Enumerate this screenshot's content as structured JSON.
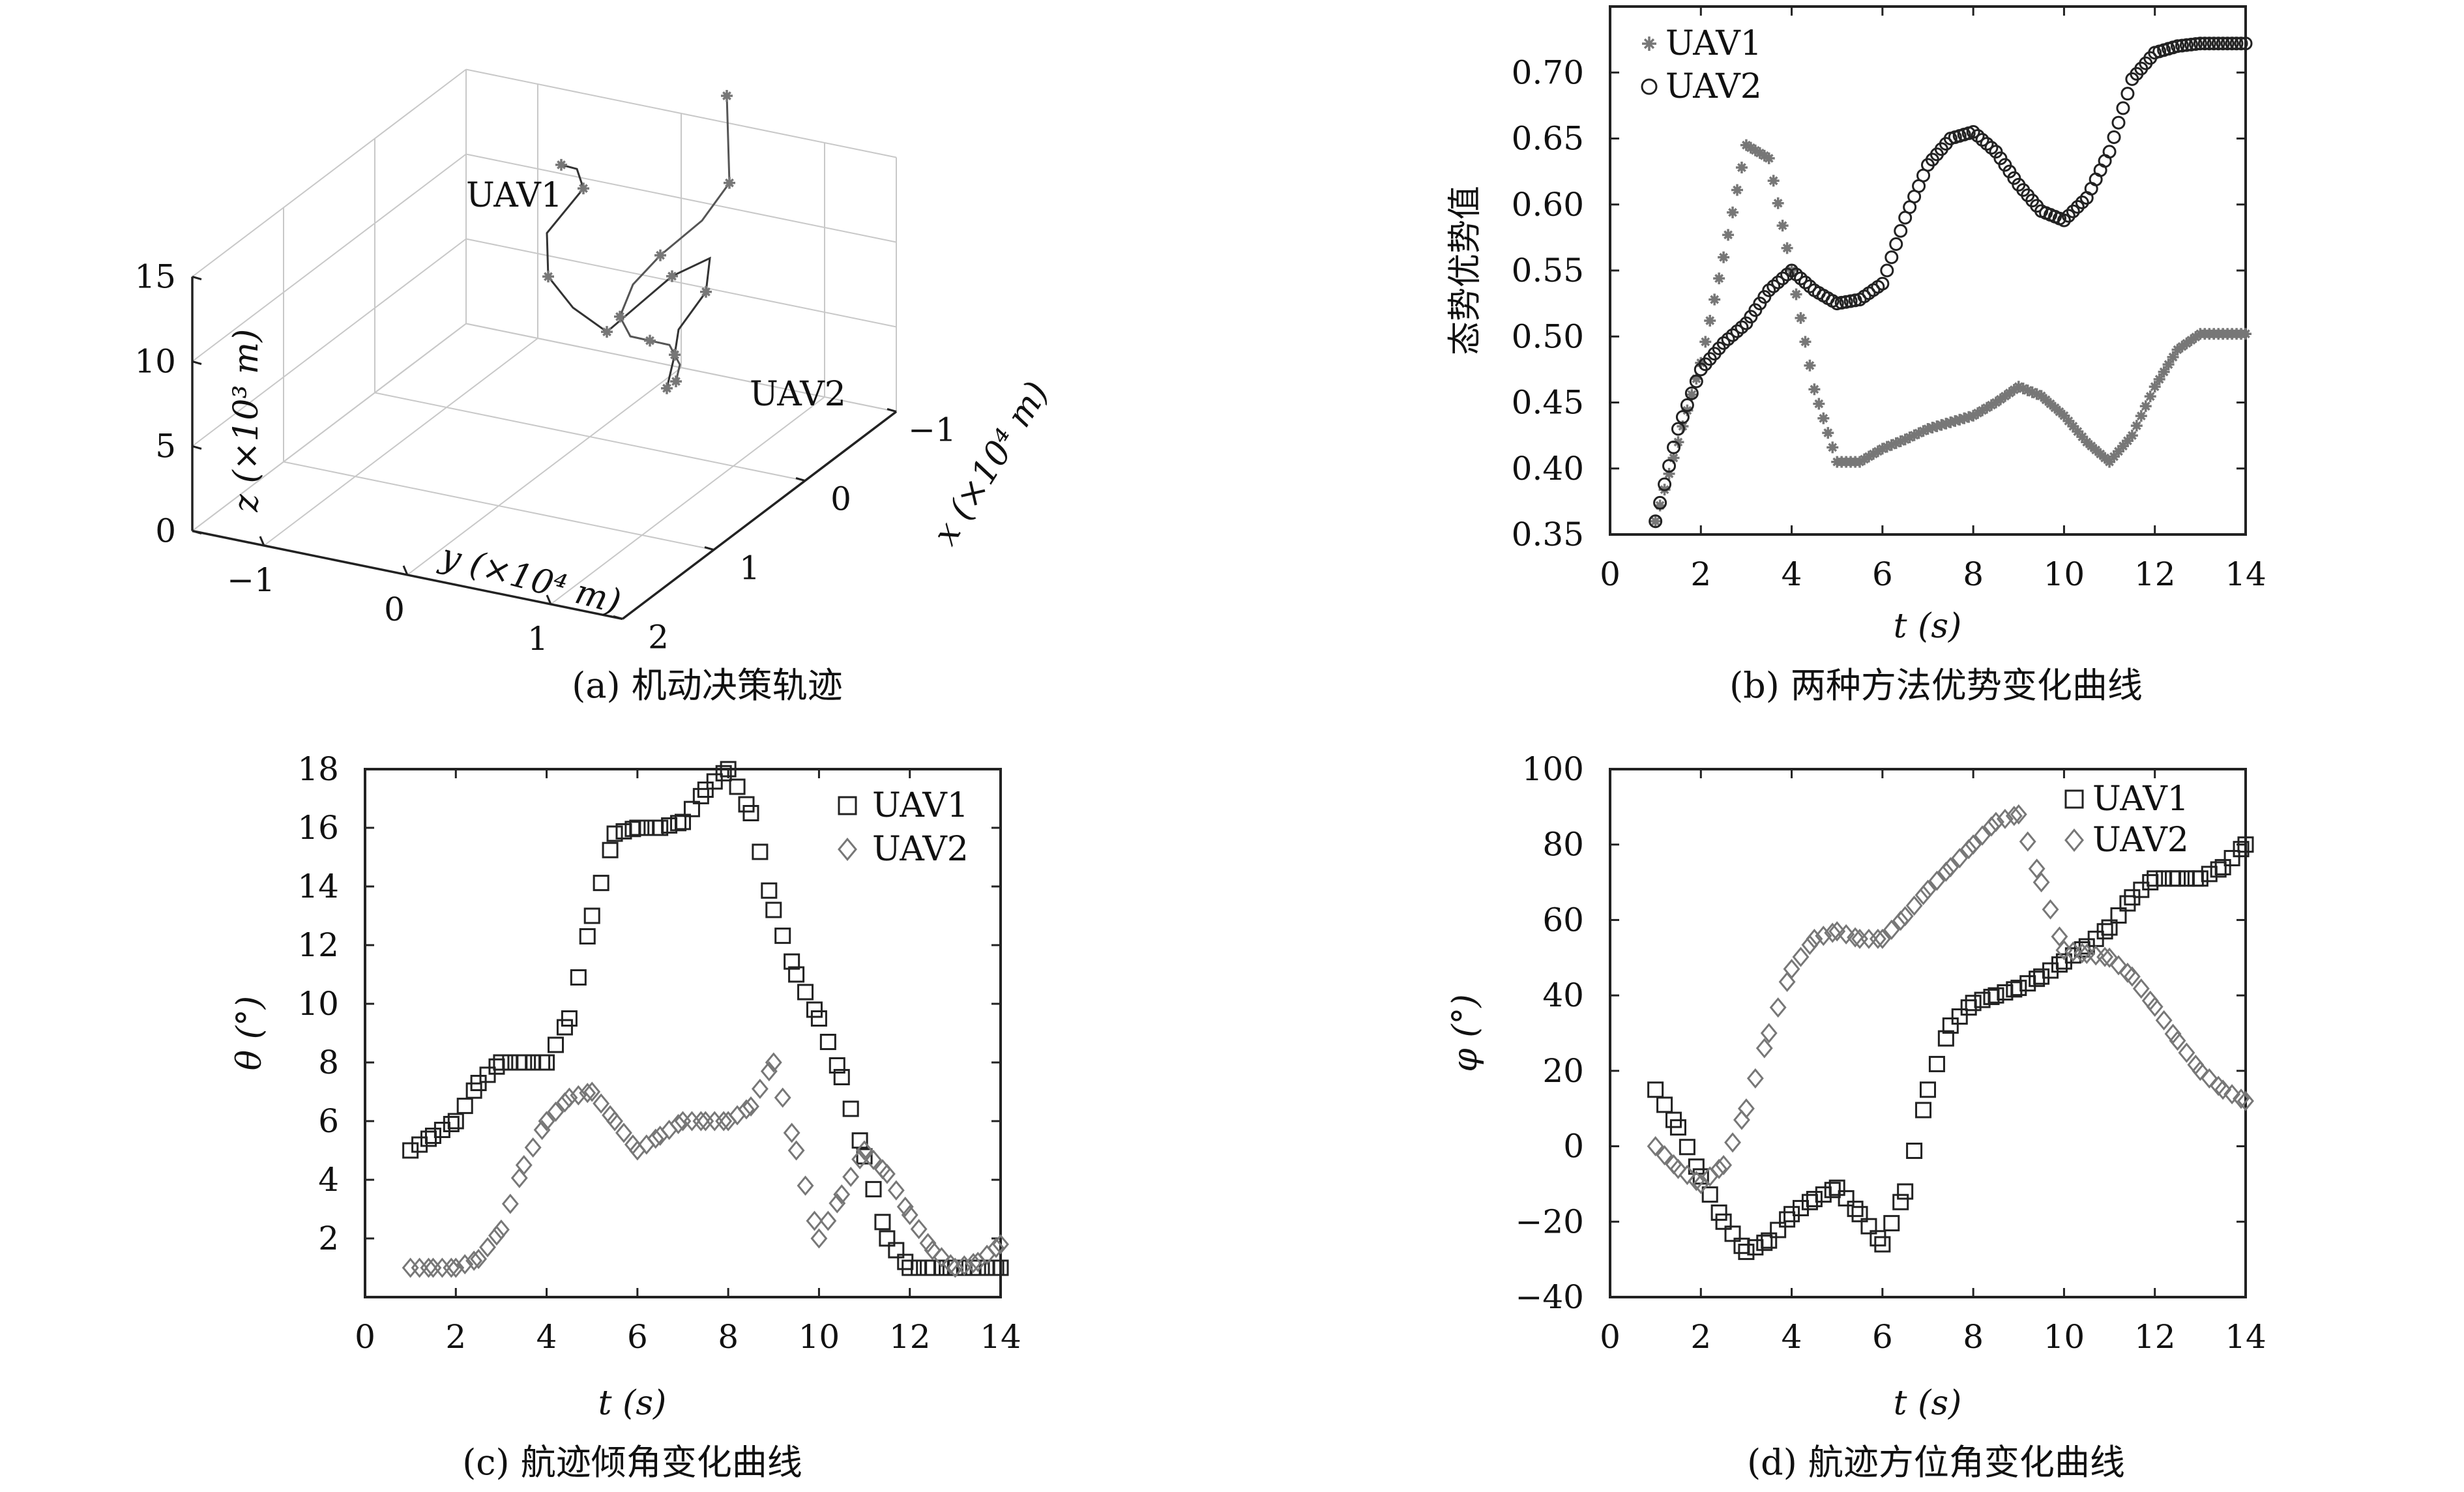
{
  "panels": {
    "a": {
      "caption": "(a) 机动决策轨迹"
    },
    "b": {
      "caption": "(b) 两种方法优势变化曲线"
    },
    "c": {
      "caption": "(c) 航迹倾角变化曲线"
    },
    "d": {
      "caption": "(d) 航迹方位角变化曲线"
    }
  },
  "chart_data": [
    {
      "id": "a",
      "type": "line3d",
      "caption": "(a) 机动决策轨迹",
      "xlabel": "x (×10⁴ m)",
      "ylabel": "y (×10⁴ m)",
      "zlabel": "z (×10³ m)",
      "x_ticks": [
        "−1",
        "0",
        "1",
        "2"
      ],
      "y_ticks": [
        "−1",
        "0",
        "1"
      ],
      "z_ticks": [
        "0",
        "5",
        "10",
        "15"
      ],
      "xlim": [
        -1,
        2
      ],
      "ylim": [
        -1.5,
        1.5
      ],
      "zlim": [
        0,
        15
      ],
      "grid": true,
      "annotations": [
        "UAV1",
        "UAV2"
      ],
      "series": [
        {
          "name": "UAV1",
          "points": [
            [
              -1.1,
              -0.9,
              10
            ],
            [
              -0.8,
              -0.6,
              11.5
            ],
            [
              -0.4,
              -0.3,
              12.5
            ],
            [
              0.0,
              -0.3,
              11.5
            ],
            [
              0.3,
              -0.1,
              10.5
            ],
            [
              0.5,
              0.2,
              10
            ],
            [
              0.6,
              0.5,
              9.5
            ],
            [
              0.4,
              0.6,
              10.5
            ],
            [
              0.2,
              0.7,
              11.5
            ],
            [
              0.1,
              0.9,
              12.5
            ],
            [
              0.3,
              1.0,
              11.5
            ],
            [
              0.6,
              1.0,
              10.5
            ],
            [
              0.8,
              1.1,
              10
            ],
            [
              1.0,
              1.2,
              10
            ],
            [
              1.2,
              1.3,
              10
            ]
          ]
        },
        {
          "name": "UAV2",
          "points": [
            [
              -1.5,
              0.0,
              14
            ],
            [
              -1.2,
              0.2,
              13
            ],
            [
              -0.9,
              0.4,
              12
            ],
            [
              -0.6,
              0.4,
              11
            ],
            [
              -0.3,
              0.3,
              10
            ],
            [
              0.0,
              0.3,
              9.5
            ],
            [
              0.3,
              0.4,
              9
            ],
            [
              0.5,
              0.6,
              9
            ],
            [
              0.6,
              0.8,
              9.5
            ],
            [
              0.7,
              1.0,
              10
            ],
            [
              0.8,
              1.1,
              10
            ],
            [
              0.9,
              1.2,
              10
            ],
            [
              1.1,
              1.3,
              10
            ]
          ]
        }
      ]
    },
    {
      "id": "b",
      "type": "scatter",
      "caption": "(b) 两种方法优势变化曲线",
      "xlabel": "t (s)",
      "ylabel": "态势优势值",
      "xlim": [
        0,
        14
      ],
      "ylim": [
        0.35,
        0.75
      ],
      "x_ticks": [
        0,
        2,
        4,
        6,
        8,
        10,
        12,
        14
      ],
      "y_ticks": [
        0.35,
        0.4,
        0.45,
        0.5,
        0.55,
        0.6,
        0.65,
        0.7
      ],
      "y_tick_labels": [
        "0.35",
        "0.40",
        "0.45",
        "0.50",
        "0.55",
        "0.60",
        "0.65",
        "0.70"
      ],
      "legend": "top-left",
      "series": [
        {
          "name": "UAV1",
          "marker": "star",
          "x": [
            1,
            1.5,
            2,
            2.5,
            3,
            3.5,
            4,
            4.5,
            5,
            5.5,
            6,
            6.5,
            7,
            7.5,
            8,
            8.5,
            9,
            9.5,
            10,
            10.5,
            11,
            11.5,
            12,
            12.5,
            13,
            13.5,
            14
          ],
          "y": [
            0.36,
            0.42,
            0.48,
            0.56,
            0.645,
            0.635,
            0.55,
            0.46,
            0.405,
            0.405,
            0.415,
            0.422,
            0.43,
            0.435,
            0.44,
            0.45,
            0.462,
            0.455,
            0.44,
            0.42,
            0.405,
            0.425,
            0.462,
            0.49,
            0.502,
            0.502,
            0.502
          ]
        },
        {
          "name": "UAV2",
          "marker": "circle",
          "x": [
            1,
            1.5,
            2,
            2.5,
            3,
            3.5,
            4,
            4.5,
            5,
            5.5,
            6,
            6.5,
            7,
            7.5,
            8,
            8.5,
            9,
            9.5,
            10,
            10.5,
            11,
            11.5,
            12,
            12.5,
            13,
            13.5,
            14
          ],
          "y": [
            0.36,
            0.43,
            0.475,
            0.495,
            0.51,
            0.535,
            0.55,
            0.535,
            0.525,
            0.528,
            0.54,
            0.59,
            0.63,
            0.65,
            0.655,
            0.64,
            0.615,
            0.595,
            0.588,
            0.605,
            0.64,
            0.695,
            0.715,
            0.72,
            0.722,
            0.722,
            0.722
          ]
        }
      ]
    },
    {
      "id": "c",
      "type": "scatter",
      "caption": "(c) 航迹倾角变化曲线",
      "xlabel": "t (s)",
      "ylabel": "θ (°)",
      "xlim": [
        0,
        14
      ],
      "ylim": [
        0,
        18
      ],
      "x_ticks": [
        0,
        2,
        4,
        6,
        8,
        10,
        12,
        14
      ],
      "y_ticks": [
        2,
        4,
        6,
        8,
        10,
        12,
        14,
        16,
        18
      ],
      "y_tick_labels": [
        "2",
        "4",
        "6",
        "8",
        "10",
        "12",
        "14",
        "16",
        "18"
      ],
      "legend": "top-right",
      "series": [
        {
          "name": "UAV1",
          "marker": "square",
          "x": [
            1,
            1.5,
            2,
            2.5,
            3,
            3.5,
            4,
            4.5,
            5,
            5.5,
            6,
            6.5,
            7,
            7.5,
            8,
            8.5,
            9,
            9.5,
            10,
            10.5,
            11,
            11.5,
            12,
            12.5,
            13,
            13.5,
            14
          ],
          "y": [
            5,
            5.5,
            6,
            7.3,
            8,
            8,
            8,
            9.5,
            13,
            15.8,
            16,
            16,
            16.2,
            17.3,
            18,
            16.5,
            13.2,
            11,
            9.5,
            7.5,
            4.8,
            2,
            1,
            1,
            1,
            1,
            1
          ]
        },
        {
          "name": "UAV2",
          "marker": "diamond",
          "x": [
            1,
            1.5,
            2,
            2.5,
            3,
            3.5,
            4,
            4.5,
            5,
            5.5,
            6,
            6.5,
            7,
            7.5,
            8,
            8.5,
            9,
            9.5,
            10,
            10.5,
            11,
            11.5,
            12,
            12.5,
            13,
            13.5,
            14
          ],
          "y": [
            1,
            1,
            1,
            1.3,
            2.3,
            4.5,
            6,
            6.8,
            7,
            6,
            5,
            5.5,
            6,
            6,
            6,
            6.5,
            8,
            5,
            2,
            3.5,
            5,
            4.2,
            2.8,
            1.6,
            1,
            1.2,
            1.8
          ]
        }
      ]
    },
    {
      "id": "d",
      "type": "scatter",
      "caption": "(d) 航迹方位角变化曲线",
      "xlabel": "t (s)",
      "ylabel": "φ (°)",
      "xlim": [
        0,
        14
      ],
      "ylim": [
        -40,
        100
      ],
      "x_ticks": [
        0,
        2,
        4,
        6,
        8,
        10,
        12,
        14
      ],
      "y_ticks": [
        -40,
        -20,
        0,
        20,
        40,
        60,
        80,
        100
      ],
      "y_tick_labels": [
        "−40",
        "−20",
        "0",
        "20",
        "40",
        "60",
        "80",
        "100"
      ],
      "legend": "top-right",
      "series": [
        {
          "name": "UAV1",
          "marker": "square",
          "x": [
            1,
            1.5,
            2,
            2.5,
            3,
            3.5,
            4,
            4.5,
            5,
            5.5,
            6,
            6.5,
            7,
            7.5,
            8,
            8.5,
            9,
            9.5,
            10,
            10.5,
            11,
            11.5,
            12,
            12.5,
            13,
            13.5,
            14
          ],
          "y": [
            15,
            5,
            -8,
            -20,
            -28,
            -25,
            -18,
            -14,
            -11,
            -18,
            -26,
            -12,
            15,
            32,
            38,
            40,
            42,
            45,
            49,
            53,
            58,
            66,
            71,
            71,
            71,
            74,
            80
          ]
        },
        {
          "name": "UAV2",
          "marker": "diamond",
          "x": [
            1,
            1.5,
            2,
            2.5,
            3,
            3.5,
            4,
            4.5,
            5,
            5.5,
            6,
            6.5,
            7,
            7.5,
            8,
            8.5,
            9,
            9.5,
            10,
            10.5,
            11,
            11.5,
            12,
            12.5,
            13,
            13.5,
            14
          ],
          "y": [
            0,
            -6,
            -10,
            -5,
            10,
            30,
            47,
            55,
            57,
            55,
            55,
            61,
            68,
            74,
            80,
            86,
            88,
            70,
            52,
            51,
            50,
            45,
            37,
            28,
            20,
            15,
            12
          ]
        }
      ]
    }
  ]
}
